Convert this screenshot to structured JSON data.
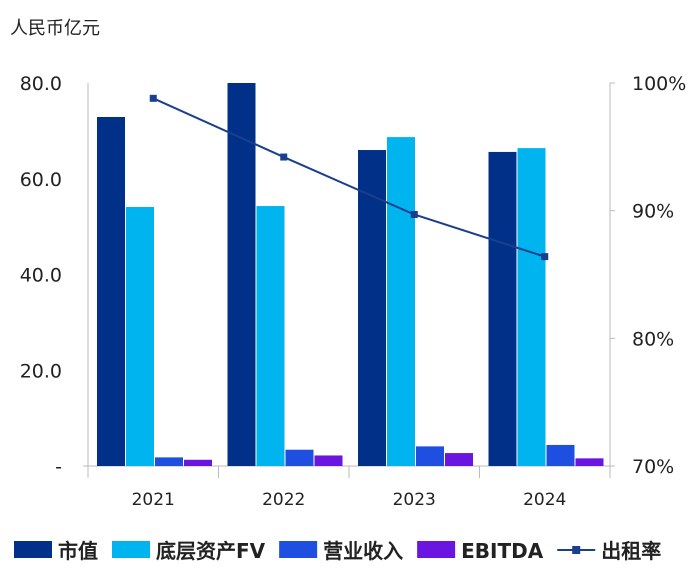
{
  "chart_data": {
    "type": "bar",
    "unit_label": "人民币亿元",
    "categories": [
      "2021",
      "2022",
      "2023",
      "2024"
    ],
    "series": [
      {
        "name": "市值",
        "type": "bar",
        "axis": "left",
        "color": "#003087",
        "values": [
          72.9,
          80.0,
          66.0,
          65.6
        ]
      },
      {
        "name": "底层资产FV",
        "type": "bar",
        "axis": "left",
        "color": "#00b5ef",
        "values": [
          54.1,
          54.3,
          68.7,
          66.4
        ]
      },
      {
        "name": "营业收入",
        "type": "bar",
        "axis": "left",
        "color": "#1f4fe0",
        "values": [
          1.8,
          3.4,
          4.1,
          4.4
        ]
      },
      {
        "name": "EBITDA",
        "type": "bar",
        "axis": "left",
        "color": "#6a16e0",
        "values": [
          1.3,
          2.2,
          2.7,
          1.6
        ]
      },
      {
        "name": "出租率",
        "type": "line",
        "axis": "right",
        "color": "#1a3f8f",
        "values": [
          98.8,
          94.2,
          89.7,
          86.4
        ]
      }
    ],
    "y_left": {
      "ylim": [
        0,
        80
      ],
      "ticks": [
        "-",
        "20.0",
        "40.0",
        "60.0",
        "80.0"
      ]
    },
    "y_right": {
      "ylim": [
        70,
        100
      ],
      "ticks": [
        "70%",
        "80%",
        "90%",
        "100%"
      ]
    },
    "grid": false,
    "legend": "bottom"
  }
}
